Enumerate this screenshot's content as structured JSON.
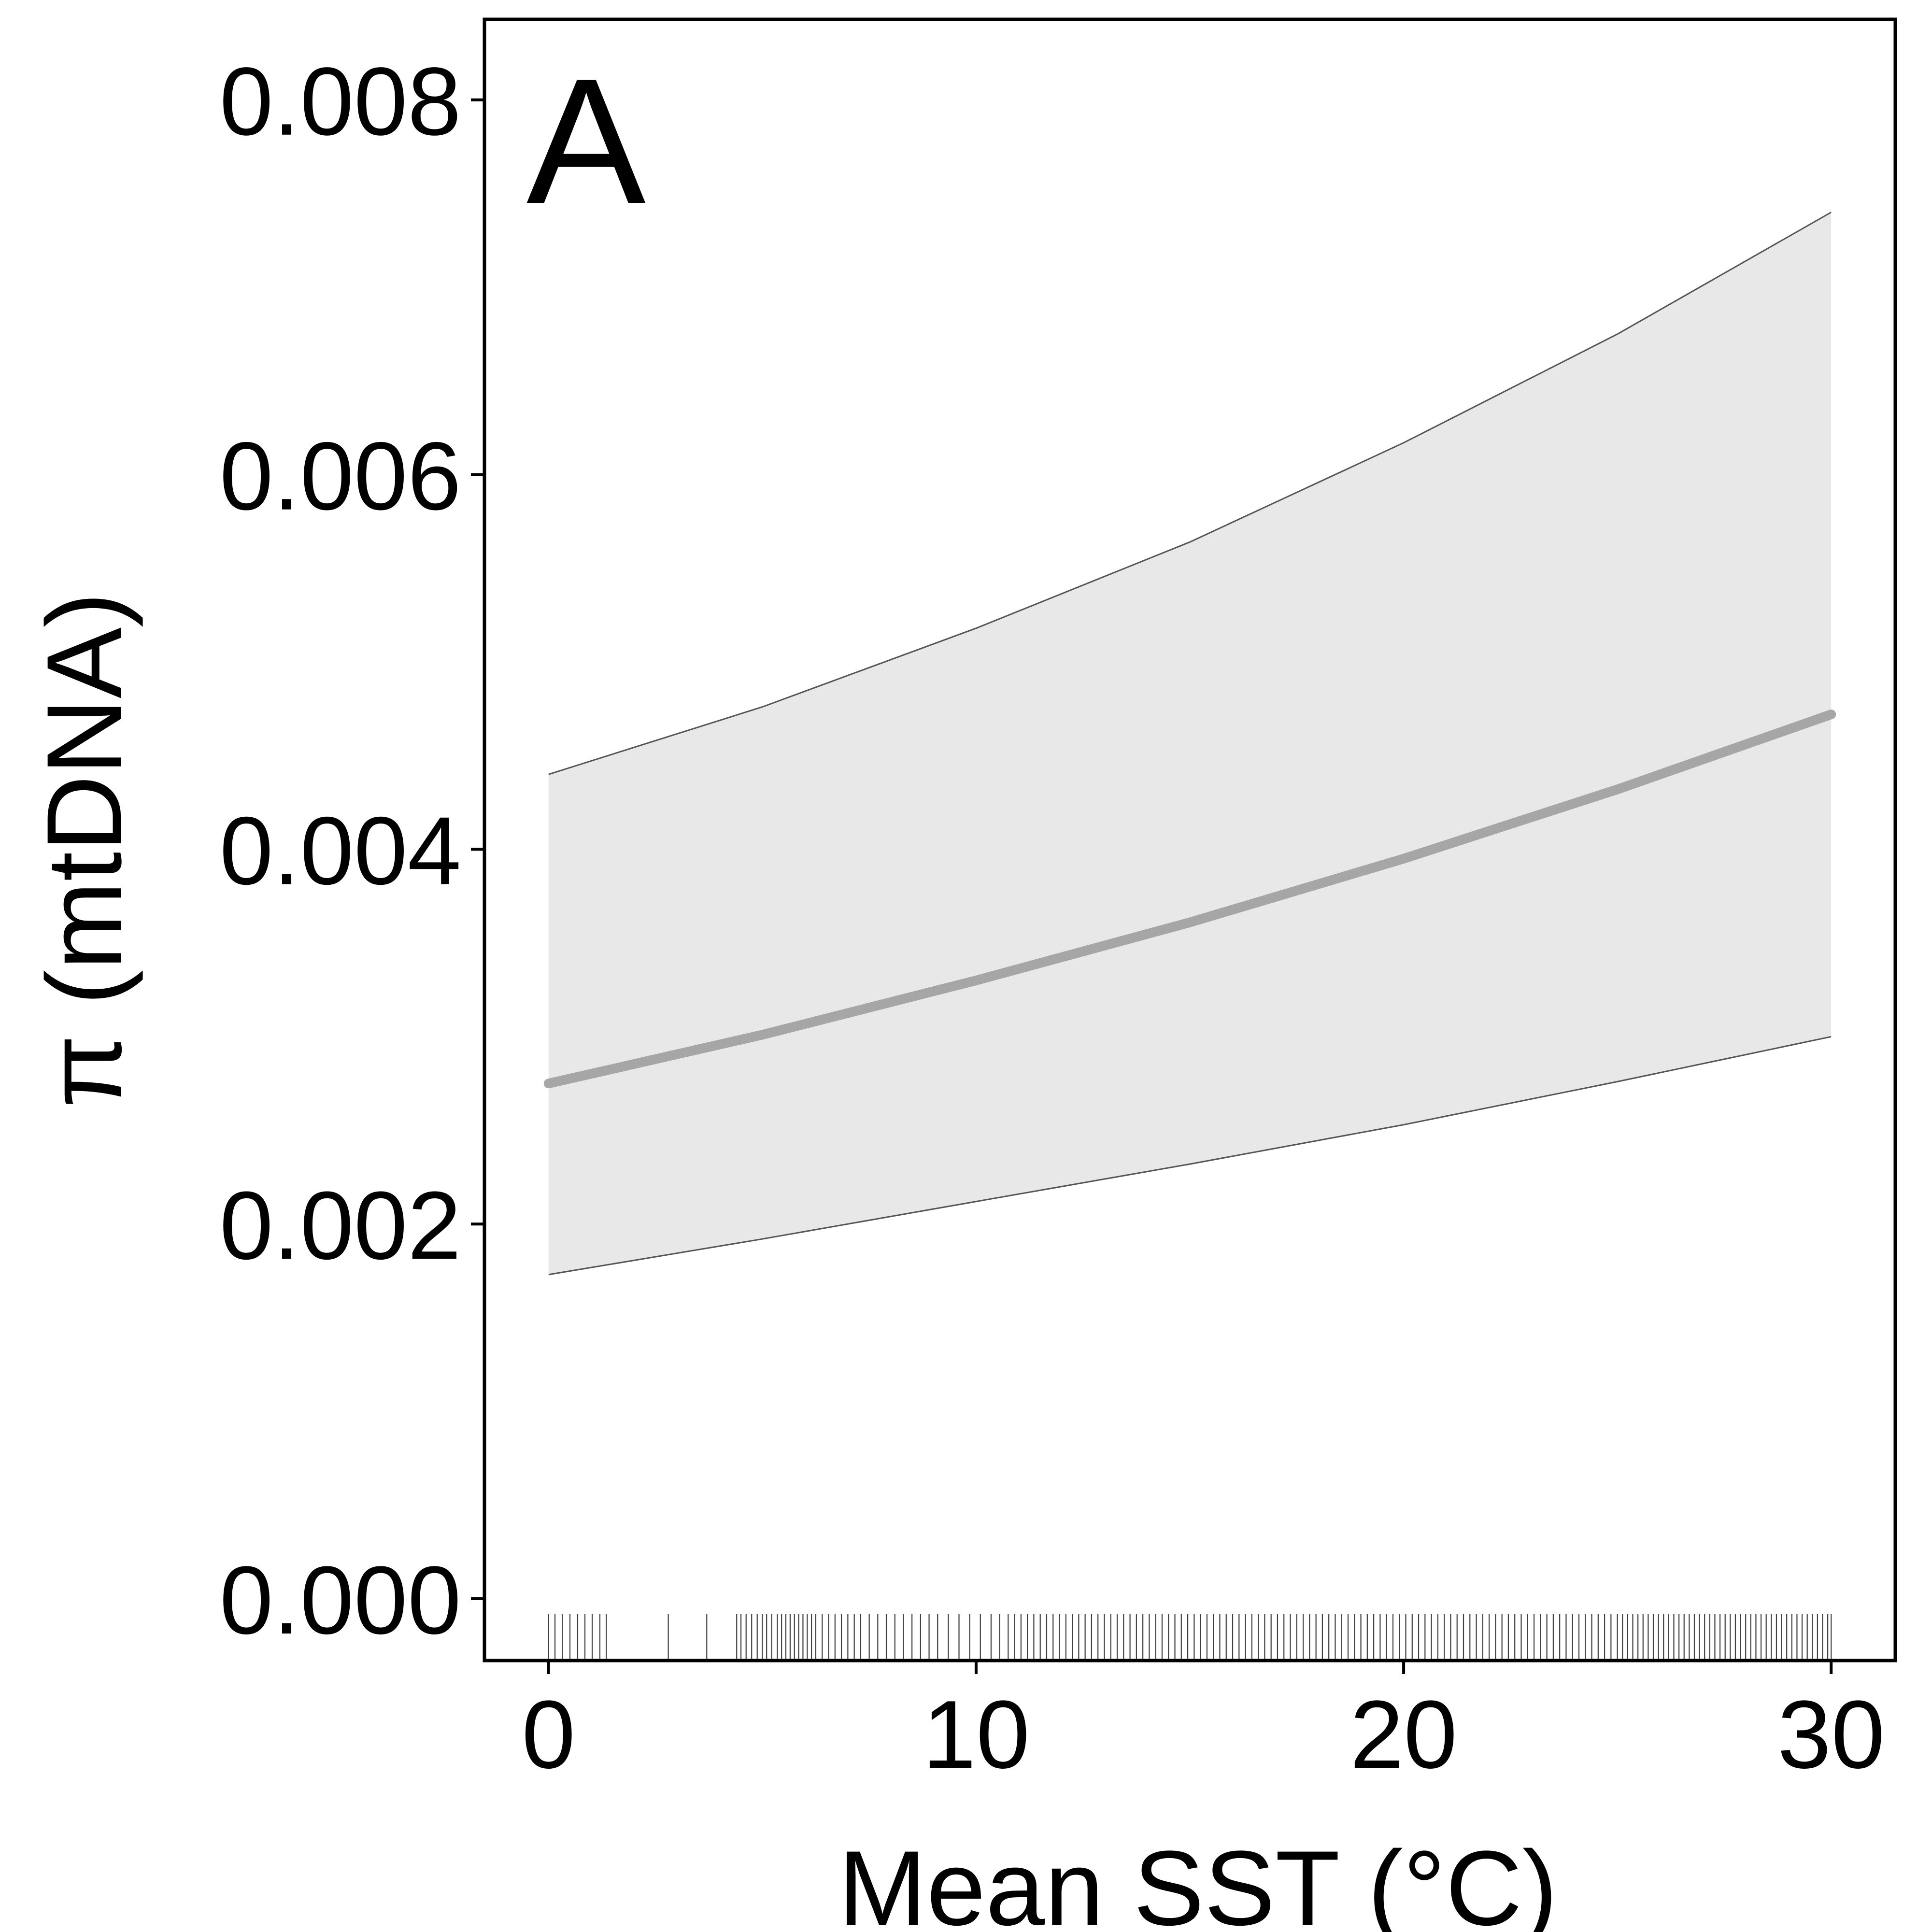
{
  "chart_data": {
    "type": "line",
    "panel_label": "A",
    "xlabel": "Mean SST (°C)",
    "ylabel": "π (mtDNA)",
    "xlim": [
      -1.5,
      31.5
    ],
    "ylim": [
      -0.00033,
      0.00843
    ],
    "x_ticks": [
      0,
      10,
      20,
      30
    ],
    "x_tick_labels": [
      "0",
      "10",
      "20",
      "30"
    ],
    "y_ticks": [
      0.0,
      0.002,
      0.004,
      0.006,
      0.008
    ],
    "y_tick_labels": [
      "0.000",
      "0.002",
      "0.004",
      "0.006",
      "0.008"
    ],
    "grid": false,
    "series": [
      {
        "role": "fit",
        "x": [
          0,
          5,
          10,
          15,
          20,
          25,
          30
        ],
        "y": [
          0.00275,
          0.00301,
          0.0033,
          0.00361,
          0.00395,
          0.00432,
          0.00472
        ]
      },
      {
        "role": "ci_upper",
        "x": [
          0,
          5,
          10,
          15,
          20,
          25,
          30
        ],
        "y": [
          0.0044,
          0.00476,
          0.00518,
          0.00564,
          0.00617,
          0.00675,
          0.0074
        ]
      },
      {
        "role": "ci_lower",
        "x": [
          0,
          5,
          10,
          15,
          20,
          25,
          30
        ],
        "y": [
          0.00173,
          0.00192,
          0.00212,
          0.00232,
          0.00253,
          0.00276,
          0.003
        ]
      }
    ],
    "colors": {
      "fit": "#a6a6a6",
      "ci_fill": "#e8e8e8",
      "ci_edge": "#555555",
      "rug": "#000000",
      "axis": "#000000"
    },
    "rug_x": [
      0.0,
      0.15,
      0.32,
      0.5,
      0.68,
      0.85,
      1.02,
      1.2,
      1.35,
      2.8,
      3.7,
      4.4,
      4.5,
      4.62,
      4.75,
      4.88,
      5.0,
      5.1,
      5.22,
      5.35,
      5.45,
      5.55,
      5.65,
      5.75,
      5.85,
      5.95,
      6.05,
      6.15,
      6.25,
      6.4,
      6.55,
      6.7,
      6.85,
      7.0,
      7.15,
      7.3,
      7.5,
      7.7,
      7.9,
      8.1,
      8.3,
      8.5,
      8.7,
      8.9,
      9.1,
      9.35,
      9.6,
      9.85,
      10.1,
      10.35,
      10.55,
      10.75,
      10.9,
      11.05,
      11.2,
      11.35,
      11.5,
      11.65,
      11.8,
      11.95,
      12.1,
      12.25,
      12.4,
      12.55,
      12.7,
      12.85,
      13.0,
      13.15,
      13.3,
      13.45,
      13.6,
      13.75,
      13.9,
      14.05,
      14.2,
      14.35,
      14.5,
      14.65,
      14.8,
      14.95,
      15.1,
      15.25,
      15.4,
      15.55,
      15.7,
      15.85,
      16.0,
      16.15,
      16.3,
      16.45,
      16.6,
      16.75,
      16.9,
      17.05,
      17.2,
      17.35,
      17.5,
      17.65,
      17.8,
      17.95,
      18.1,
      18.25,
      18.4,
      18.55,
      18.7,
      18.85,
      19.0,
      19.15,
      19.3,
      19.45,
      19.6,
      19.75,
      19.9,
      20.05,
      20.2,
      20.35,
      20.5,
      20.65,
      20.8,
      20.95,
      21.1,
      21.25,
      21.4,
      21.55,
      21.7,
      21.85,
      22.0,
      22.15,
      22.3,
      22.45,
      22.6,
      22.75,
      22.9,
      23.05,
      23.2,
      23.35,
      23.5,
      23.65,
      23.8,
      23.95,
      24.1,
      24.25,
      24.4,
      24.55,
      24.7,
      24.85,
      25.0,
      25.12,
      25.24,
      25.36,
      25.48,
      25.6,
      25.72,
      25.84,
      25.96,
      26.08,
      26.2,
      26.32,
      26.44,
      26.56,
      26.68,
      26.8,
      26.92,
      27.04,
      27.16,
      27.28,
      27.4,
      27.52,
      27.64,
      27.76,
      27.88,
      28.0,
      28.12,
      28.24,
      28.36,
      28.48,
      28.6,
      28.72,
      28.84,
      28.96,
      29.08,
      29.2,
      29.32,
      29.44,
      29.56,
      29.68,
      29.8,
      29.92,
      30.0
    ]
  }
}
